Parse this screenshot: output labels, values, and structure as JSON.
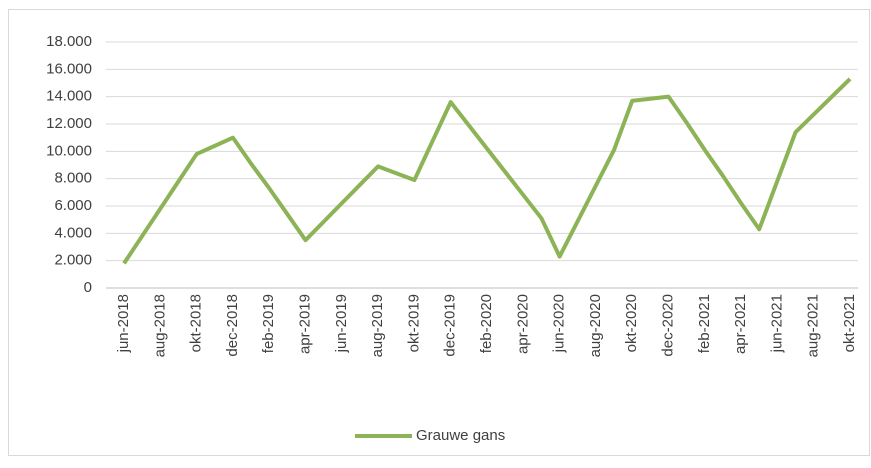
{
  "chart_data": {
    "type": "line",
    "categories": [
      "jun-2018",
      null,
      "aug-2018",
      null,
      "okt-2018",
      null,
      "dec-2018",
      null,
      "feb-2019",
      null,
      "apr-2019",
      null,
      "jun-2019",
      null,
      "aug-2019",
      null,
      "okt-2019",
      null,
      "dec-2019",
      null,
      "feb-2020",
      null,
      "apr-2020",
      null,
      "jun-2020",
      null,
      "aug-2020",
      null,
      "okt-2020",
      null,
      "dec-2020",
      null,
      "feb-2021",
      null,
      "apr-2021",
      null,
      "jun-2021",
      null,
      "aug-2021",
      null,
      "okt-2021"
    ],
    "series": [
      {
        "name": "Grauwe gans",
        "color": "#8cb356",
        "values": [
          1800,
          3800,
          5800,
          7800,
          9800,
          10400,
          11000,
          9100,
          7300,
          5400,
          3500,
          4850,
          6200,
          7550,
          8900,
          8400,
          7900,
          10750,
          13600,
          11900,
          10200,
          8500,
          6800,
          5100,
          2300,
          4900,
          7500,
          10100,
          13700,
          13850,
          14000,
          12100,
          10100,
          8200,
          6200,
          4300,
          7850,
          11400,
          12700,
          14000,
          15300
        ]
      }
    ],
    "ylim": [
      0,
      18000
    ],
    "yticks": [
      0,
      {
        "value": 2000,
        "label": "2.000"
      },
      {
        "value": 4000,
        "label": "4.000"
      },
      {
        "value": 6000,
        "label": "6.000"
      },
      {
        "value": 8000,
        "label": "8.000"
      },
      {
        "value": 10000,
        "label": "10.000"
      },
      {
        "value": 12000,
        "label": "12.000"
      },
      {
        "value": 14000,
        "label": "14.000"
      },
      {
        "value": 16000,
        "label": "16.000"
      },
      {
        "value": 18000,
        "label": "18.000"
      }
    ],
    "grid": true,
    "legend": "bottom"
  }
}
